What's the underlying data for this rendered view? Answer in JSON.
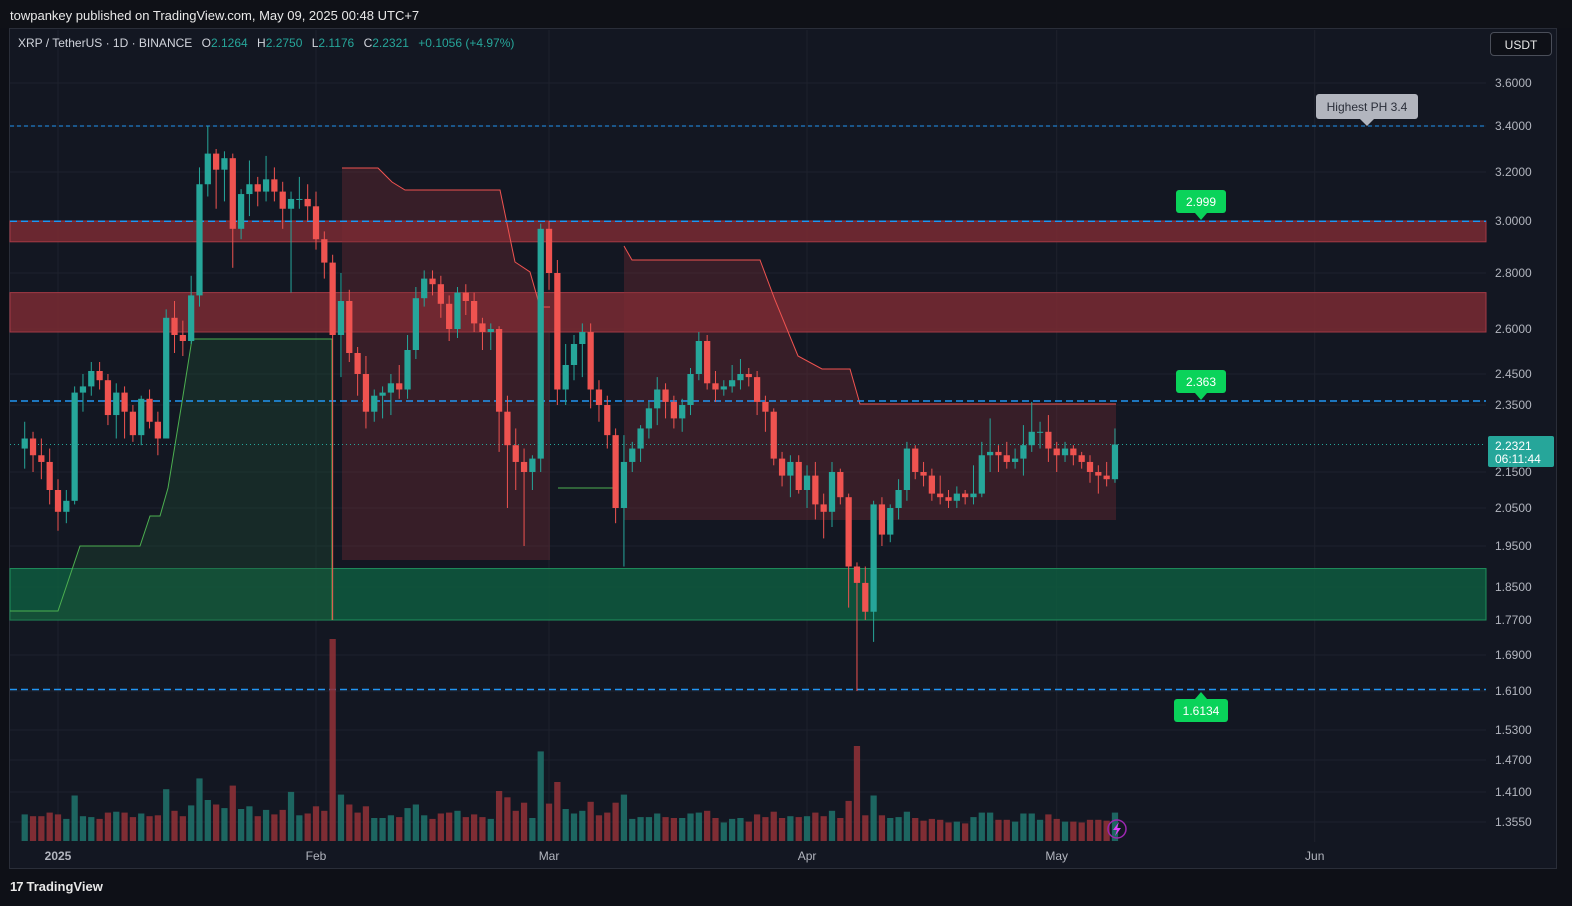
{
  "header": {
    "published": "towpankey published on TradingView.com, May 09, 2025 00:48 UTC+7"
  },
  "legend": {
    "symbol": "XRP / TetherUS · 1D · BINANCE",
    "o_key": "O",
    "o_val": "2.1264",
    "h_key": "H",
    "h_val": "2.2750",
    "l_key": "L",
    "l_val": "2.1176",
    "c_key": "C",
    "c_val": "2.2321",
    "change": "+0.1056 (+4.97%)"
  },
  "currency_button": "USDT",
  "footer": {
    "brand": "TradingView",
    "logo_mark": "17"
  },
  "colors": {
    "up": "#26a69a",
    "down": "#ef5350",
    "level_line": "#2196f3",
    "green_label": "#0ad35a",
    "resistance_zone": "#7a2a33",
    "support_zone": "#0e5a3e",
    "price_label": "#26a69a"
  },
  "annotations": {
    "highest_ph": "Highest PH 3.4",
    "level_2999": "2.999",
    "level_2363": "2.363",
    "level_16134": "1.6134",
    "current_price": "2.2321",
    "countdown": "06:11:44"
  },
  "chart_data": {
    "type": "candlestick",
    "symbol": "XRP/USDT",
    "interval": "1D",
    "exchange": "BINANCE",
    "y_ticks": [
      "3.6000",
      "3.4000",
      "3.2000",
      "3.0000",
      "2.8000",
      "2.6000",
      "2.4500",
      "2.3500",
      "2.1500",
      "2.0500",
      "1.9500",
      "1.8500",
      "1.7700",
      "1.6900",
      "1.6100",
      "1.5300",
      "1.4700",
      "1.4100",
      "1.3550"
    ],
    "x_ticks": [
      {
        "label": "2025",
        "date": "2025-01-01"
      },
      {
        "label": "Feb",
        "date": "2025-02-01"
      },
      {
        "label": "Mar",
        "date": "2025-03-01"
      },
      {
        "label": "Apr",
        "date": "2025-04-01"
      },
      {
        "label": "May",
        "date": "2025-05-01"
      },
      {
        "label": "Jun",
        "date": "2025-06-01"
      }
    ],
    "horizontal_levels": [
      3.4,
      2.999,
      2.363,
      1.6134
    ],
    "zones": [
      {
        "type": "resistance",
        "from": 2.92,
        "to": 3.0
      },
      {
        "type": "resistance",
        "from": 2.59,
        "to": 2.73
      },
      {
        "type": "support",
        "from": 1.77,
        "to": 1.895
      }
    ],
    "candles": [
      [
        "2024-12-28",
        2.22,
        2.3,
        2.16,
        2.25
      ],
      [
        "2024-12-29",
        2.25,
        2.27,
        2.15,
        2.2
      ],
      [
        "2024-12-30",
        2.2,
        2.25,
        2.13,
        2.18
      ],
      [
        "2024-12-31",
        2.18,
        2.22,
        2.06,
        2.1
      ],
      [
        "2025-01-01",
        2.1,
        2.13,
        1.99,
        2.04
      ],
      [
        "2025-01-02",
        2.04,
        2.1,
        2.01,
        2.07
      ],
      [
        "2025-01-03",
        2.07,
        2.41,
        2.06,
        2.39
      ],
      [
        "2025-01-04",
        2.39,
        2.45,
        2.33,
        2.41
      ],
      [
        "2025-01-05",
        2.41,
        2.49,
        2.38,
        2.46
      ],
      [
        "2025-01-06",
        2.46,
        2.49,
        2.4,
        2.43
      ],
      [
        "2025-01-07",
        2.43,
        2.45,
        2.29,
        2.32
      ],
      [
        "2025-01-08",
        2.32,
        2.42,
        2.25,
        2.39
      ],
      [
        "2025-01-09",
        2.39,
        2.41,
        2.25,
        2.33
      ],
      [
        "2025-01-10",
        2.33,
        2.35,
        2.24,
        2.26
      ],
      [
        "2025-01-11",
        2.26,
        2.38,
        2.23,
        2.37
      ],
      [
        "2025-01-12",
        2.37,
        2.4,
        2.28,
        2.3
      ],
      [
        "2025-01-13",
        2.3,
        2.33,
        2.2,
        2.25
      ],
      [
        "2025-01-14",
        2.25,
        2.67,
        2.25,
        2.64
      ],
      [
        "2025-01-15",
        2.64,
        2.7,
        2.52,
        2.58
      ],
      [
        "2025-01-16",
        2.58,
        2.63,
        2.51,
        2.56
      ],
      [
        "2025-01-17",
        2.56,
        2.79,
        2.55,
        2.72
      ],
      [
        "2025-01-18",
        2.72,
        3.22,
        2.68,
        3.15
      ],
      [
        "2025-01-19",
        3.15,
        3.4,
        3.1,
        3.28
      ],
      [
        "2025-01-20",
        3.28,
        3.3,
        3.05,
        3.21
      ],
      [
        "2025-01-21",
        3.21,
        3.29,
        3.08,
        3.26
      ],
      [
        "2025-01-22",
        3.26,
        3.28,
        2.82,
        2.97
      ],
      [
        "2025-01-23",
        2.97,
        3.13,
        2.93,
        3.11
      ],
      [
        "2025-01-24",
        3.11,
        3.25,
        3.02,
        3.15
      ],
      [
        "2025-01-25",
        3.15,
        3.18,
        3.06,
        3.12
      ],
      [
        "2025-01-26",
        3.12,
        3.27,
        3.08,
        3.17
      ],
      [
        "2025-01-27",
        3.17,
        3.22,
        3.08,
        3.12
      ],
      [
        "2025-01-28",
        3.12,
        3.16,
        2.97,
        3.05
      ],
      [
        "2025-01-29",
        3.05,
        3.12,
        2.73,
        3.09
      ],
      [
        "2025-01-30",
        3.09,
        3.18,
        3.05,
        3.09
      ],
      [
        "2025-01-31",
        3.09,
        3.15,
        3.0,
        3.06
      ],
      [
        "2025-02-01",
        3.06,
        3.12,
        2.89,
        2.93
      ],
      [
        "2025-02-02",
        2.93,
        2.96,
        2.78,
        2.84
      ],
      [
        "2025-02-03",
        2.84,
        2.87,
        1.77,
        2.58
      ],
      [
        "2025-02-04",
        2.58,
        2.8,
        2.44,
        2.7
      ],
      [
        "2025-02-05",
        2.7,
        2.74,
        2.49,
        2.52
      ],
      [
        "2025-02-06",
        2.52,
        2.54,
        2.38,
        2.45
      ],
      [
        "2025-02-07",
        2.45,
        2.51,
        2.28,
        2.33
      ],
      [
        "2025-02-08",
        2.33,
        2.4,
        2.3,
        2.38
      ],
      [
        "2025-02-09",
        2.38,
        2.41,
        2.31,
        2.39
      ],
      [
        "2025-02-10",
        2.39,
        2.45,
        2.32,
        2.42
      ],
      [
        "2025-02-11",
        2.42,
        2.48,
        2.37,
        2.4
      ],
      [
        "2025-02-12",
        2.4,
        2.58,
        2.37,
        2.53
      ],
      [
        "2025-02-13",
        2.53,
        2.75,
        2.5,
        2.71
      ],
      [
        "2025-02-14",
        2.71,
        2.81,
        2.68,
        2.78
      ],
      [
        "2025-02-15",
        2.78,
        2.81,
        2.72,
        2.76
      ],
      [
        "2025-02-16",
        2.76,
        2.79,
        2.64,
        2.69
      ],
      [
        "2025-02-17",
        2.69,
        2.72,
        2.56,
        2.6
      ],
      [
        "2025-02-18",
        2.6,
        2.75,
        2.57,
        2.73
      ],
      [
        "2025-02-19",
        2.73,
        2.76,
        2.65,
        2.7
      ],
      [
        "2025-02-20",
        2.7,
        2.73,
        2.59,
        2.62
      ],
      [
        "2025-02-21",
        2.62,
        2.64,
        2.53,
        2.59
      ],
      [
        "2025-02-22",
        2.59,
        2.62,
        2.53,
        2.6
      ],
      [
        "2025-02-23",
        2.6,
        2.61,
        2.21,
        2.33
      ],
      [
        "2025-02-24",
        2.33,
        2.38,
        2.05,
        2.23
      ],
      [
        "2025-02-25",
        2.23,
        2.28,
        2.1,
        2.18
      ],
      [
        "2025-02-26",
        2.18,
        2.22,
        1.95,
        2.15
      ],
      [
        "2025-02-27",
        2.15,
        2.2,
        2.1,
        2.19
      ],
      [
        "2025-02-28",
        2.19,
        2.99,
        2.15,
        2.97
      ],
      [
        "2025-03-01",
        2.97,
        3.0,
        2.74,
        2.8
      ],
      [
        "2025-03-02",
        2.8,
        2.85,
        2.35,
        2.4
      ],
      [
        "2025-03-03",
        2.4,
        2.55,
        2.35,
        2.48
      ],
      [
        "2025-03-04",
        2.48,
        2.58,
        2.43,
        2.55
      ],
      [
        "2025-03-05",
        2.55,
        2.62,
        2.44,
        2.59
      ],
      [
        "2025-03-06",
        2.59,
        2.62,
        2.34,
        2.4
      ],
      [
        "2025-03-07",
        2.4,
        2.43,
        2.3,
        2.35
      ],
      [
        "2025-03-08",
        2.35,
        2.38,
        2.22,
        2.26
      ],
      [
        "2025-03-09",
        2.26,
        2.28,
        2.01,
        2.05
      ],
      [
        "2025-03-10",
        2.05,
        2.26,
        1.9,
        2.18
      ],
      [
        "2025-03-11",
        2.18,
        2.24,
        2.15,
        2.22
      ],
      [
        "2025-03-12",
        2.22,
        2.29,
        2.18,
        2.28
      ],
      [
        "2025-03-13",
        2.28,
        2.36,
        2.25,
        2.34
      ],
      [
        "2025-03-14",
        2.34,
        2.44,
        2.29,
        2.4
      ],
      [
        "2025-03-15",
        2.4,
        2.42,
        2.31,
        2.36
      ],
      [
        "2025-03-16",
        2.36,
        2.38,
        2.28,
        2.31
      ],
      [
        "2025-03-17",
        2.31,
        2.37,
        2.27,
        2.35
      ],
      [
        "2025-03-18",
        2.35,
        2.47,
        2.32,
        2.45
      ],
      [
        "2025-03-19",
        2.45,
        2.59,
        2.43,
        2.56
      ],
      [
        "2025-03-20",
        2.56,
        2.58,
        2.4,
        2.42
      ],
      [
        "2025-03-21",
        2.42,
        2.46,
        2.36,
        2.4
      ],
      [
        "2025-03-22",
        2.4,
        2.43,
        2.38,
        2.41
      ],
      [
        "2025-03-23",
        2.41,
        2.48,
        2.39,
        2.43
      ],
      [
        "2025-03-24",
        2.43,
        2.5,
        2.4,
        2.45
      ],
      [
        "2025-03-25",
        2.45,
        2.47,
        2.41,
        2.44
      ],
      [
        "2025-03-26",
        2.44,
        2.46,
        2.32,
        2.36
      ],
      [
        "2025-03-27",
        2.36,
        2.38,
        2.27,
        2.33
      ],
      [
        "2025-03-28",
        2.33,
        2.34,
        2.17,
        2.19
      ],
      [
        "2025-03-29",
        2.19,
        2.21,
        2.11,
        2.14
      ],
      [
        "2025-03-30",
        2.14,
        2.2,
        2.08,
        2.18
      ],
      [
        "2025-03-31",
        2.18,
        2.2,
        2.09,
        2.1
      ],
      [
        "2025-04-01",
        2.1,
        2.17,
        2.05,
        2.14
      ],
      [
        "2025-04-02",
        2.14,
        2.18,
        2.02,
        2.06
      ],
      [
        "2025-04-03",
        2.06,
        2.09,
        1.97,
        2.04
      ],
      [
        "2025-04-04",
        2.04,
        2.18,
        2.0,
        2.15
      ],
      [
        "2025-04-05",
        2.15,
        2.16,
        2.06,
        2.08
      ],
      [
        "2025-04-06",
        2.08,
        2.09,
        1.8,
        1.9
      ],
      [
        "2025-04-07",
        1.9,
        1.91,
        1.61,
        1.86
      ],
      [
        "2025-04-08",
        1.86,
        1.9,
        1.77,
        1.79
      ],
      [
        "2025-04-09",
        1.79,
        2.07,
        1.72,
        2.06
      ],
      [
        "2025-04-10",
        2.06,
        2.08,
        1.95,
        1.98
      ],
      [
        "2025-04-11",
        1.98,
        2.06,
        1.96,
        2.05
      ],
      [
        "2025-04-12",
        2.05,
        2.13,
        2.02,
        2.1
      ],
      [
        "2025-04-13",
        2.1,
        2.24,
        2.07,
        2.22
      ],
      [
        "2025-04-14",
        2.22,
        2.23,
        2.13,
        2.15
      ],
      [
        "2025-04-15",
        2.15,
        2.18,
        2.11,
        2.14
      ],
      [
        "2025-04-16",
        2.14,
        2.16,
        2.07,
        2.09
      ],
      [
        "2025-04-17",
        2.09,
        2.14,
        2.06,
        2.08
      ],
      [
        "2025-04-18",
        2.08,
        2.1,
        2.05,
        2.07
      ],
      [
        "2025-04-19",
        2.07,
        2.11,
        2.05,
        2.09
      ],
      [
        "2025-04-20",
        2.09,
        2.1,
        2.06,
        2.08
      ],
      [
        "2025-04-21",
        2.08,
        2.17,
        2.06,
        2.09
      ],
      [
        "2025-04-22",
        2.09,
        2.24,
        2.08,
        2.2
      ],
      [
        "2025-04-23",
        2.2,
        2.31,
        2.15,
        2.21
      ],
      [
        "2025-04-24",
        2.21,
        2.23,
        2.15,
        2.2
      ],
      [
        "2025-04-25",
        2.2,
        2.24,
        2.16,
        2.18
      ],
      [
        "2025-04-26",
        2.18,
        2.22,
        2.16,
        2.19
      ],
      [
        "2025-04-27",
        2.19,
        2.29,
        2.14,
        2.23
      ],
      [
        "2025-04-28",
        2.23,
        2.36,
        2.21,
        2.27
      ],
      [
        "2025-04-29",
        2.27,
        2.3,
        2.22,
        2.27
      ],
      [
        "2025-04-30",
        2.27,
        2.32,
        2.18,
        2.22
      ],
      [
        "2025-05-01",
        2.22,
        2.24,
        2.15,
        2.2
      ],
      [
        "2025-05-02",
        2.2,
        2.24,
        2.18,
        2.22
      ],
      [
        "2025-05-03",
        2.22,
        2.23,
        2.17,
        2.2
      ],
      [
        "2025-05-04",
        2.2,
        2.21,
        2.16,
        2.18
      ],
      [
        "2025-05-05",
        2.18,
        2.2,
        2.12,
        2.15
      ],
      [
        "2025-05-06",
        2.15,
        2.17,
        2.09,
        2.14
      ],
      [
        "2025-05-07",
        2.14,
        2.18,
        2.11,
        2.13
      ],
      [
        "2025-05-08",
        2.13,
        2.28,
        2.12,
        2.2321
      ]
    ],
    "volume_scale_max": 100
  }
}
